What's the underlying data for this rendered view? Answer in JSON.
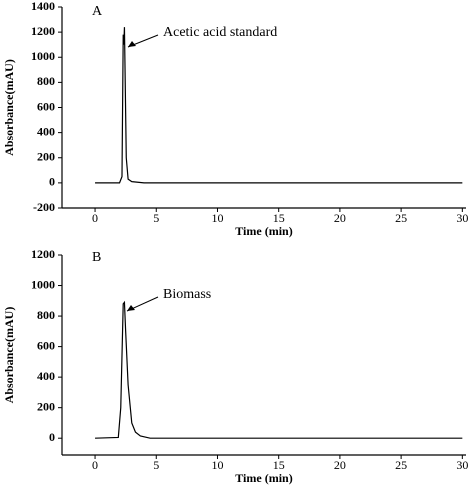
{
  "chart_data": [
    {
      "type": "line",
      "panel_label": "A",
      "annotation": "Acetic acid standard",
      "xlabel": "Time (min)",
      "ylabel": "Absorbance(mAU)",
      "x": [
        0,
        2.0,
        2.2,
        2.3,
        2.35,
        2.4,
        2.45,
        2.55,
        2.7,
        3.0,
        3.5,
        4.0,
        30
      ],
      "values": [
        0,
        0,
        50,
        1180,
        1100,
        1240,
        900,
        200,
        30,
        10,
        5,
        0,
        0
      ],
      "color": "#000000",
      "xlim": [
        -2.7,
        30.3
      ],
      "xticks": [
        0,
        5,
        10,
        15,
        20,
        25,
        30
      ],
      "ylim": [
        -200,
        1400
      ],
      "yticks": [
        -200,
        0,
        200,
        400,
        600,
        800,
        1000,
        1200,
        1400
      ]
    },
    {
      "type": "line",
      "panel_label": "B",
      "annotation": "Biomass",
      "xlabel": "Time (min)",
      "ylabel": "Absorbance(mAU)",
      "x": [
        0,
        1.9,
        2.1,
        2.3,
        2.4,
        2.5,
        2.7,
        3.0,
        3.3,
        3.7,
        4.5,
        30
      ],
      "values": [
        0,
        5,
        200,
        880,
        890,
        700,
        350,
        100,
        40,
        15,
        0,
        0
      ],
      "color": "#000000",
      "xlim": [
        -2.7,
        30.3
      ],
      "xticks": [
        0,
        5,
        10,
        15,
        20,
        25,
        30
      ],
      "ylim": [
        -110,
        1200
      ],
      "yticks": [
        0,
        200,
        400,
        600,
        800,
        1000,
        1200
      ]
    }
  ]
}
